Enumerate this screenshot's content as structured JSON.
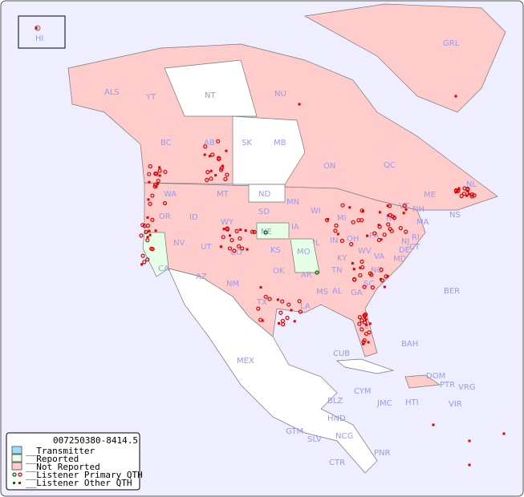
{
  "map": {
    "colors": {
      "ocean": "#eeeeff",
      "not_reported": "#ffcccc",
      "reported": "#e6ffe6",
      "transmitter": "#99ddff",
      "no_data": "#ffffff",
      "label": "#9a9aee",
      "dot": "#dd0000",
      "dot_green": "#006600"
    },
    "inset_label": "HI",
    "region_labels": [
      "ALS",
      "YT",
      "NT",
      "NU",
      "GRL",
      "BC",
      "AB",
      "SK",
      "MB",
      "ON",
      "QC",
      "NL",
      "NS",
      "WA",
      "OR",
      "ID",
      "MT",
      "WY",
      "ND",
      "SD",
      "MN",
      "WI",
      "MI",
      "NE",
      "IA",
      "IL",
      "IN",
      "OH",
      "PA",
      "NY",
      "VT",
      "NH",
      "ME",
      "MA",
      "CT",
      "RI",
      "NJ",
      "DE",
      "MD",
      "VA",
      "WV",
      "KY",
      "TN",
      "NC",
      "SC",
      "GA",
      "AL",
      "MS",
      "LA",
      "AR",
      "MO",
      "KS",
      "OK",
      "TX",
      "NM",
      "AZ",
      "UT",
      "CO",
      "NV",
      "CA",
      "FL",
      "BER",
      "BAH",
      "CUB",
      "MEX",
      "DOM",
      "PTR",
      "VRG",
      "VIR",
      "CYM",
      "JMC",
      "HTI",
      "BLZ",
      "HND",
      "GTM",
      "SLV",
      "NCG",
      "CTR",
      "PNR"
    ]
  },
  "legend": {
    "title": "007250380-8414.5",
    "items": [
      "__Transmitter",
      "__Reported",
      "__Not Reported",
      "__Listener Primary QTH",
      "__Listener Other QTH"
    ]
  }
}
